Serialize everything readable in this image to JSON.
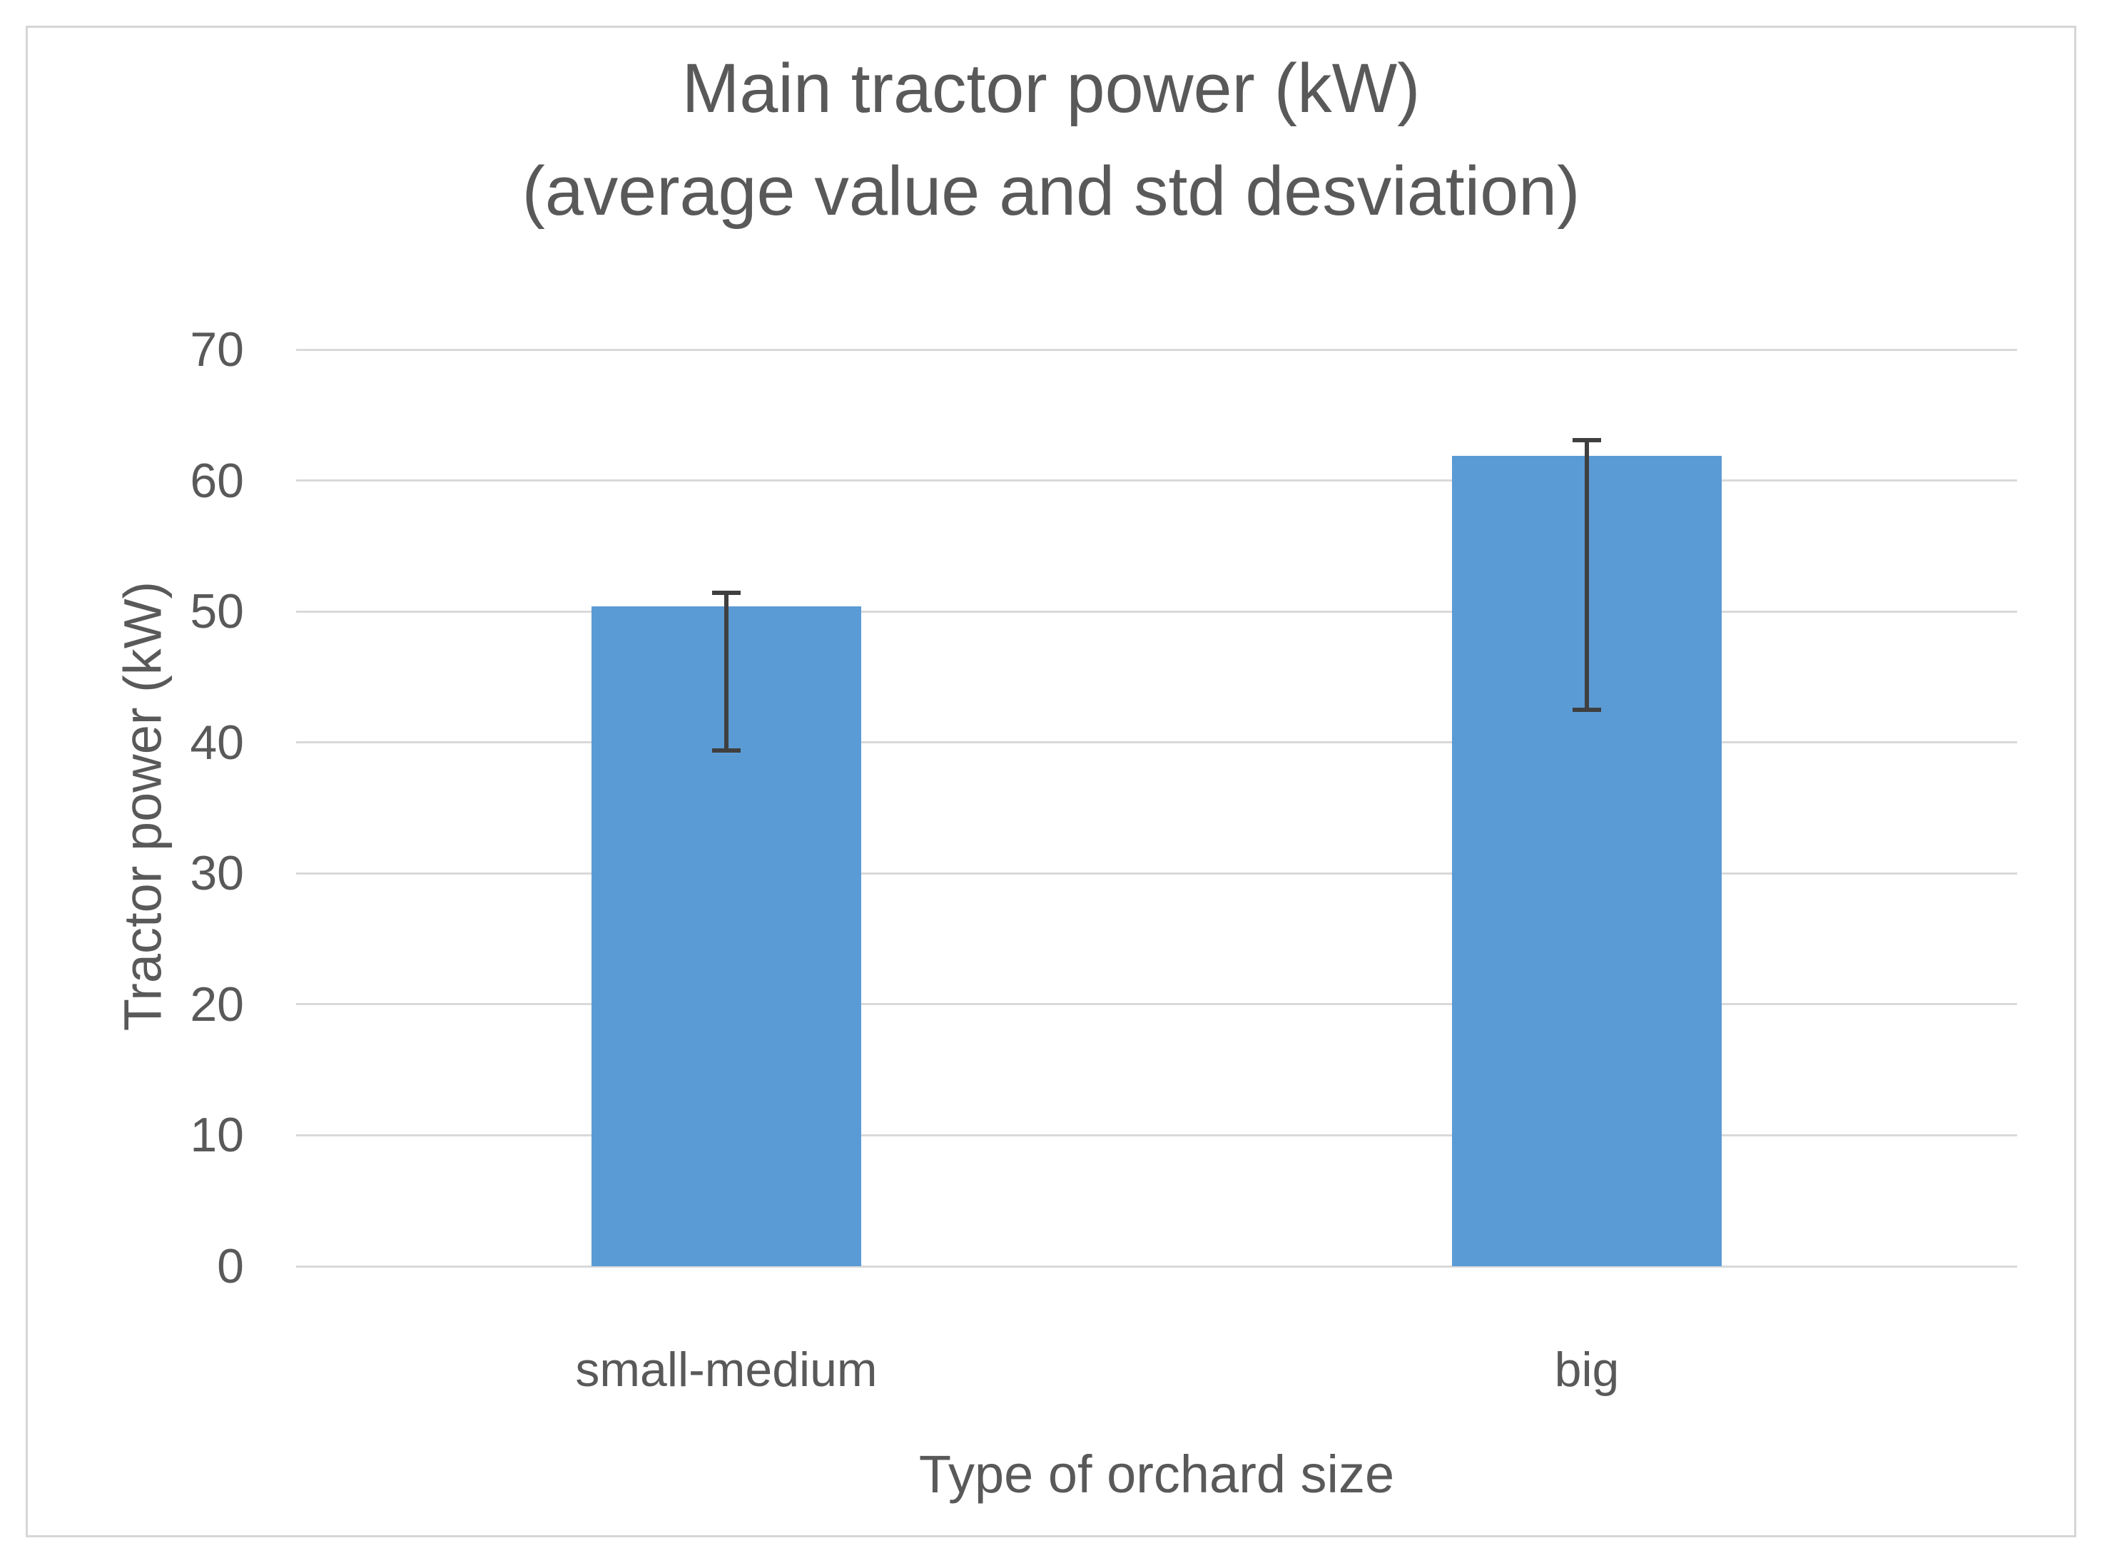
{
  "chart": {
    "title_line1": "Main tractor power (kW)",
    "title_line2": "(average value and std desviation)",
    "y_axis_title": "Tractor power (kW)",
    "x_axis_title": "Type of orchard size"
  },
  "chart_data": {
    "type": "bar",
    "title": "Main tractor power (kW) (average value and std desviation)",
    "xlabel": "Type of orchard size",
    "ylabel": "Tractor power (kW)",
    "categories": [
      "small-medium",
      "big"
    ],
    "values": [
      50.4,
      61.9
    ],
    "error_bars": {
      "upper_caps": [
        51.4,
        63.1
      ],
      "lower_caps": [
        39.4,
        42.5
      ],
      "plus": [
        1.0,
        1.2
      ],
      "minus": [
        11.0,
        19.4
      ]
    },
    "ylim": [
      0,
      70
    ],
    "yticks": [
      0,
      10,
      20,
      30,
      40,
      50,
      60,
      70
    ],
    "grid": true,
    "legend": false,
    "colors": {
      "bar_fill": "#5B9BD5",
      "error_bar": "#3F3F3F",
      "gridline": "#D9D9D9",
      "text": "#595959",
      "frame_border": "#D6D6D6",
      "background": "#FFFFFF"
    }
  }
}
